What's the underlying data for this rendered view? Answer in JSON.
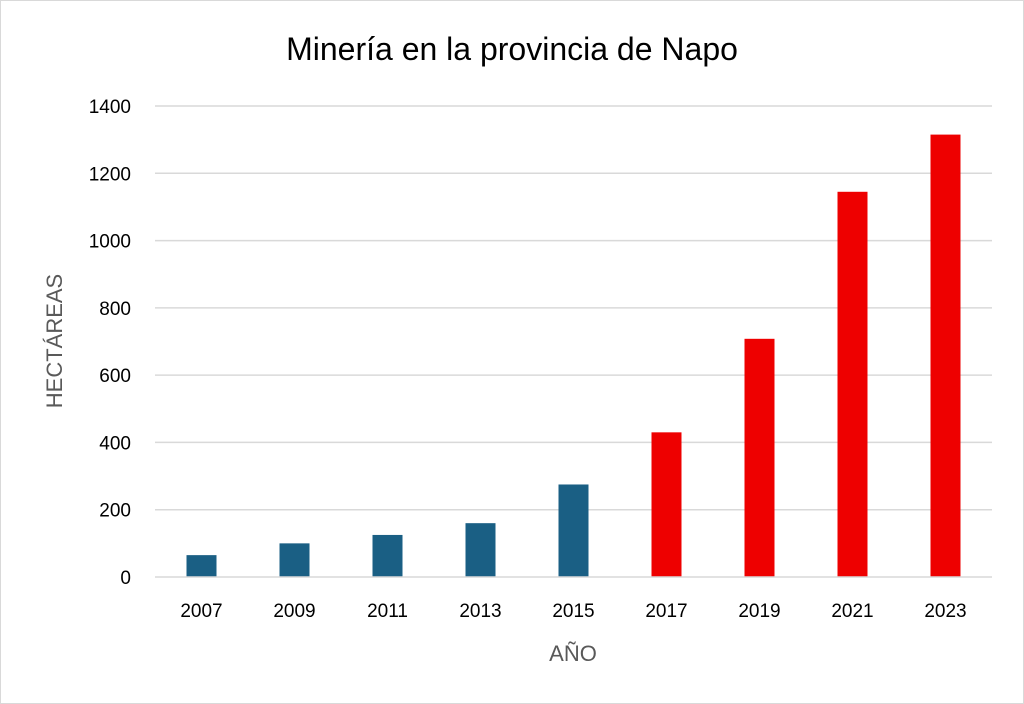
{
  "chart_data": {
    "type": "bar",
    "title": "Minería en la provincia de Napo",
    "xlabel": "AÑO",
    "ylabel": "HECTÁREAS",
    "categories": [
      "2007",
      "2009",
      "2011",
      "2013",
      "2015",
      "2017",
      "2019",
      "2021",
      "2023"
    ],
    "values": [
      65,
      100,
      125,
      160,
      275,
      430,
      708,
      1145,
      1315
    ],
    "bar_colors": [
      "#1a5f84",
      "#1a5f84",
      "#1a5f84",
      "#1a5f84",
      "#1a5f84",
      "#ee0000",
      "#ee0000",
      "#ee0000",
      "#ee0000"
    ],
    "ylim": [
      0,
      1400
    ],
    "yticks": [
      "0",
      "200",
      "400",
      "600",
      "800",
      "1000",
      "1200",
      "1400"
    ],
    "grid": true,
    "legend": "none"
  }
}
